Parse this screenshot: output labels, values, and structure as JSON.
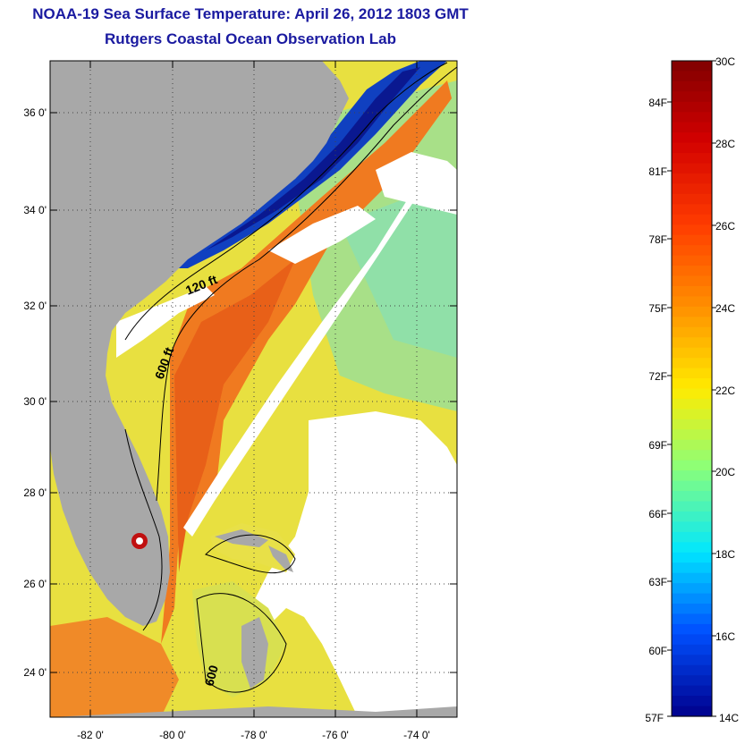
{
  "title": {
    "line1": "NOAA-19 Sea Surface Temperature:  April 26, 2012 1803 GMT",
    "line2": "Rutgers Coastal Ocean Observation Lab"
  },
  "map": {
    "lat_labels": [
      "36 0'",
      "34 0'",
      "32 0'",
      "30 0'",
      "28 0'",
      "26 0'",
      "24 0'"
    ],
    "lon_labels": [
      "-82 0'",
      "-80 0'",
      "-78 0'",
      "-76 0'",
      "-74 0'"
    ],
    "depth_labels": [
      "120 ft",
      "600 ft",
      "600"
    ]
  },
  "colorbar": {
    "celsius_labels": [
      "30C",
      "28C",
      "26C",
      "24C",
      "22C",
      "20C",
      "18C",
      "16C",
      "14C"
    ],
    "fahrenheit_labels": [
      "84F",
      "81F",
      "78F",
      "75F",
      "72F",
      "69F",
      "66F",
      "63F",
      "60F",
      "57F"
    ]
  },
  "colors": {
    "land": "#a8a8a8",
    "cloud": "#ffffff",
    "title": "#1a1aa0"
  }
}
